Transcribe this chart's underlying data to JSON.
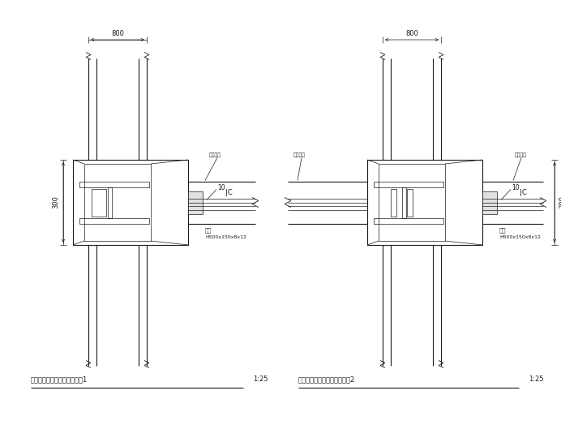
{
  "bg_color": "#ffffff",
  "line_color": "#1a1a1a",
  "title1": "型钢柱与梁连接节点配筋构造1",
  "title2": "型钢柱与梁连接节点配筋构造2",
  "scale": "1:25",
  "label_beam": "钢梁",
  "label_beam2": "H500x150x8x12",
  "label_weld": "双面焊缝",
  "label_weld2": "双面焊缝",
  "dim_800_left": "800",
  "dim_800_right": "800",
  "dim_300": "300",
  "dim_10": "10"
}
